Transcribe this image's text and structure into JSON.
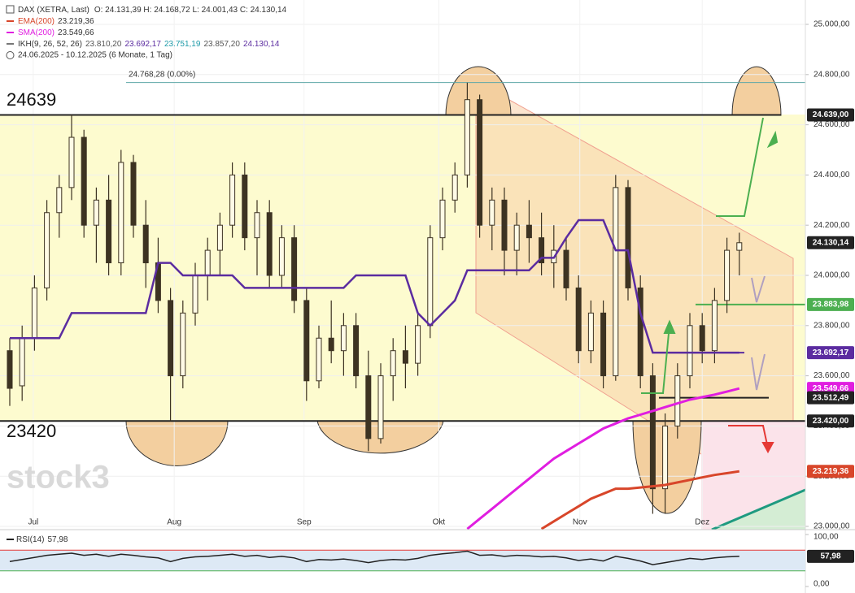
{
  "chart_data": {
    "type": "candlestick",
    "legend": {
      "instrument": "DAX (XETRA, Last)",
      "ohlc": "O: 24.131,39  H: 24.168,72  L: 24.001,43  C: 24.130,14",
      "ema_name": "EMA(200)",
      "ema_value": "23.219,36",
      "sma_name": "SMA(200)",
      "sma_value": "23.549,66",
      "ikh_name": "IKH(9, 26, 52, 26)",
      "ikh_values": [
        {
          "text": "23.810,20",
          "color": "#555555"
        },
        {
          "text": "23.692,17",
          "color": "#5b2ca0"
        },
        {
          "text": "23.751,19",
          "color": "#1e9aa8"
        },
        {
          "text": "23.857,20",
          "color": "#555555"
        },
        {
          "text": "24.130,14",
          "color": "#5b2ca0"
        }
      ],
      "range": "24.06.2025 - 10.12.2025 (6 Monate, 1 Tag)"
    },
    "watermark": "stock3",
    "annotations": [
      "24639",
      "23420"
    ],
    "peak_label": "24.768,28 (0.00%)",
    "ylim": [
      23000,
      25000
    ],
    "yticks": [
      {
        "value": 23000,
        "label": "23.000,00"
      },
      {
        "value": 23200,
        "label": "23.200,00"
      },
      {
        "value": 23400,
        "label": "23.400,00"
      },
      {
        "value": 23600,
        "label": "23.600,00"
      },
      {
        "value": 23800,
        "label": "23.800,00"
      },
      {
        "value": 24000,
        "label": "24.000,00"
      },
      {
        "value": 24200,
        "label": "24.200,00"
      },
      {
        "value": 24400,
        "label": "24.400,00"
      },
      {
        "value": 24600,
        "label": "24.600,00"
      },
      {
        "value": 24800,
        "label": "24.800,00"
      },
      {
        "value": 25000,
        "label": "25.000,00"
      }
    ],
    "xticks": [
      {
        "value": 1.9,
        "label": "Jul"
      },
      {
        "value": 13.3,
        "label": "Aug"
      },
      {
        "value": 23.8,
        "label": "Sep"
      },
      {
        "value": 34.7,
        "label": "Okt"
      },
      {
        "value": 46.1,
        "label": "Nov"
      },
      {
        "value": 56,
        "label": "Dez"
      }
    ],
    "grid": true,
    "candles": [
      {
        "open": 23700,
        "high": 23750,
        "low": 23480,
        "close": 23550
      },
      {
        "open": 23560,
        "high": 23800,
        "low": 23500,
        "close": 23750
      },
      {
        "open": 23750,
        "high": 24000,
        "low": 23700,
        "close": 23950
      },
      {
        "open": 23950,
        "high": 24300,
        "low": 23900,
        "close": 24250
      },
      {
        "open": 24250,
        "high": 24400,
        "low": 24150,
        "close": 24350
      },
      {
        "open": 24350,
        "high": 24640,
        "low": 24300,
        "close": 24550
      },
      {
        "open": 24550,
        "high": 24580,
        "low": 24150,
        "close": 24200
      },
      {
        "open": 24200,
        "high": 24350,
        "low": 24050,
        "close": 24300
      },
      {
        "open": 24300,
        "high": 24400,
        "low": 24000,
        "close": 24050
      },
      {
        "open": 24050,
        "high": 24500,
        "low": 24000,
        "close": 24450
      },
      {
        "open": 24450,
        "high": 24480,
        "low": 24150,
        "close": 24200
      },
      {
        "open": 24200,
        "high": 24300,
        "low": 23950,
        "close": 24050
      },
      {
        "open": 24050,
        "high": 24150,
        "low": 23850,
        "close": 23900
      },
      {
        "open": 23900,
        "high": 23950,
        "low": 23420,
        "close": 23600
      },
      {
        "open": 23600,
        "high": 23900,
        "low": 23550,
        "close": 23850
      },
      {
        "open": 23850,
        "high": 24050,
        "low": 23800,
        "close": 24000
      },
      {
        "open": 24000,
        "high": 24150,
        "low": 23900,
        "close": 24100
      },
      {
        "open": 24100,
        "high": 24250,
        "low": 24000,
        "close": 24200
      },
      {
        "open": 24200,
        "high": 24450,
        "low": 24150,
        "close": 24400
      },
      {
        "open": 24400,
        "high": 24450,
        "low": 24100,
        "close": 24150
      },
      {
        "open": 24150,
        "high": 24300,
        "low": 24000,
        "close": 24250
      },
      {
        "open": 24250,
        "high": 24300,
        "low": 23950,
        "close": 24000
      },
      {
        "open": 24000,
        "high": 24200,
        "low": 23950,
        "close": 24150
      },
      {
        "open": 24150,
        "high": 24200,
        "low": 23850,
        "close": 23900
      },
      {
        "open": 23900,
        "high": 23950,
        "low": 23500,
        "close": 23580
      },
      {
        "open": 23580,
        "high": 23800,
        "low": 23550,
        "close": 23750
      },
      {
        "open": 23750,
        "high": 23900,
        "low": 23650,
        "close": 23700
      },
      {
        "open": 23700,
        "high": 23850,
        "low": 23600,
        "close": 23800
      },
      {
        "open": 23800,
        "high": 23850,
        "low": 23550,
        "close": 23600
      },
      {
        "open": 23600,
        "high": 23700,
        "low": 23300,
        "close": 23350
      },
      {
        "open": 23350,
        "high": 23650,
        "low": 23330,
        "close": 23600
      },
      {
        "open": 23600,
        "high": 23750,
        "low": 23500,
        "close": 23700
      },
      {
        "open": 23700,
        "high": 23800,
        "low": 23550,
        "close": 23650
      },
      {
        "open": 23650,
        "high": 23850,
        "low": 23600,
        "close": 23800
      },
      {
        "open": 23800,
        "high": 24200,
        "low": 23750,
        "close": 24150
      },
      {
        "open": 24150,
        "high": 24350,
        "low": 24100,
        "close": 24300
      },
      {
        "open": 24300,
        "high": 24450,
        "low": 24250,
        "close": 24400
      },
      {
        "open": 24400,
        "high": 24768,
        "low": 24350,
        "close": 24700
      },
      {
        "open": 24700,
        "high": 24720,
        "low": 24150,
        "close": 24200
      },
      {
        "open": 24200,
        "high": 24350,
        "low": 24100,
        "close": 24300
      },
      {
        "open": 24300,
        "high": 24350,
        "low": 24000,
        "close": 24100
      },
      {
        "open": 24100,
        "high": 24250,
        "low": 24000,
        "close": 24200
      },
      {
        "open": 24200,
        "high": 24300,
        "low": 24050,
        "close": 24150
      },
      {
        "open": 24150,
        "high": 24250,
        "low": 24000,
        "close": 24050
      },
      {
        "open": 24050,
        "high": 24200,
        "low": 23950,
        "close": 24100
      },
      {
        "open": 24100,
        "high": 24150,
        "low": 23900,
        "close": 23950
      },
      {
        "open": 23950,
        "high": 24000,
        "low": 23650,
        "close": 23700
      },
      {
        "open": 23700,
        "high": 23900,
        "low": 23650,
        "close": 23850
      },
      {
        "open": 23850,
        "high": 23900,
        "low": 23550,
        "close": 23600
      },
      {
        "open": 23600,
        "high": 24400,
        "low": 23580,
        "close": 24350
      },
      {
        "open": 24350,
        "high": 24380,
        "low": 23900,
        "close": 23950
      },
      {
        "open": 23950,
        "high": 24000,
        "low": 23550,
        "close": 23600
      },
      {
        "open": 23600,
        "high": 23650,
        "low": 23050,
        "close": 23150
      },
      {
        "open": 23150,
        "high": 23450,
        "low": 23050,
        "close": 23400
      },
      {
        "open": 23400,
        "high": 23650,
        "low": 23350,
        "close": 23600
      },
      {
        "open": 23600,
        "high": 23850,
        "low": 23550,
        "close": 23800
      },
      {
        "open": 23800,
        "high": 23850,
        "low": 23650,
        "close": 23700
      },
      {
        "open": 23700,
        "high": 23950,
        "low": 23650,
        "close": 23900
      },
      {
        "open": 23900,
        "high": 24150,
        "low": 23850,
        "close": 24100
      },
      {
        "open": 24100,
        "high": 24170,
        "low": 24000,
        "close": 24130.14
      }
    ],
    "series": [
      {
        "name": "IKH",
        "color": "#5b2ca0",
        "values": [
          23750,
          23750,
          23750,
          23750,
          23750,
          23850,
          23850,
          23850,
          23850,
          23850,
          23850,
          23850,
          24050,
          24050,
          24000,
          24000,
          24000,
          24000,
          24000,
          23950,
          23950,
          23950,
          23950,
          23950,
          23950,
          23950,
          23950,
          23950,
          24000,
          24000,
          24000,
          24000,
          24000,
          23850,
          23800,
          23850,
          23900,
          24020,
          24020,
          24020,
          24020,
          24020,
          24020,
          24070,
          24070,
          24150,
          24220,
          24220,
          24220,
          24100,
          24100,
          23850,
          23692.17,
          23692.17,
          23692.17,
          23692.17,
          23692.17,
          23692.17,
          23692.17,
          23692.17
        ]
      },
      {
        "name": "SMA(200)",
        "color": "#e01ee0",
        "values": [
          null,
          null,
          null,
          null,
          null,
          null,
          null,
          null,
          null,
          null,
          null,
          null,
          null,
          null,
          null,
          null,
          null,
          null,
          null,
          null,
          null,
          null,
          null,
          null,
          null,
          null,
          null,
          null,
          null,
          null,
          null,
          null,
          null,
          null,
          null,
          null,
          null,
          22990,
          23030,
          23070,
          23110,
          23150,
          23190,
          23230,
          23270,
          23300,
          23330,
          23360,
          23390,
          23410,
          23430,
          23445,
          23460,
          23475,
          23490,
          23505,
          23515,
          23525,
          23537,
          23549.66
        ]
      },
      {
        "name": "EMA(200)",
        "color": "#d8462a",
        "values": [
          null,
          null,
          null,
          null,
          null,
          null,
          null,
          null,
          null,
          null,
          null,
          null,
          null,
          null,
          null,
          null,
          null,
          null,
          null,
          null,
          null,
          null,
          null,
          null,
          null,
          null,
          null,
          null,
          null,
          null,
          null,
          null,
          null,
          null,
          null,
          null,
          null,
          null,
          null,
          null,
          null,
          null,
          null,
          22990,
          23020,
          23050,
          23080,
          23110,
          23130,
          23150,
          23150,
          23155,
          23160,
          23165,
          23175,
          23185,
          23195,
          23205,
          23212,
          23219.36
        ]
      }
    ],
    "levels": [
      {
        "value": 24768.28,
        "color": "#5fa8a8"
      },
      {
        "value": 24639,
        "color": "#222222"
      },
      {
        "value": 23883.98,
        "color": "#4caf50"
      },
      {
        "value": 23692.17,
        "color": "#5b2ca0"
      },
      {
        "value": 23512.49,
        "color": "#222222"
      },
      {
        "value": 23420,
        "color": "#222222"
      }
    ],
    "price_tags": [
      {
        "value": 24639,
        "label": "24.639,00",
        "color": "#222222"
      },
      {
        "value": 24130.14,
        "label": "24.130,14",
        "color": "#222222"
      },
      {
        "value": 23883.98,
        "label": "23.883,98",
        "color": "#4caf50"
      },
      {
        "value": 23692.17,
        "label": "23.692,17",
        "color": "#5b2ca0"
      },
      {
        "value": 23549.66,
        "label": "23.549,66",
        "color": "#e01ee0"
      },
      {
        "value": 23512.49,
        "label": "23.512,49",
        "color": "#222222"
      },
      {
        "value": 23420,
        "label": "23.420,00",
        "color": "#222222"
      },
      {
        "value": 23219.36,
        "label": "23.219,36",
        "color": "#d8462a"
      }
    ],
    "rsi": {
      "name": "RSI(14)",
      "value_label": "57,98",
      "color": "#222222",
      "ylim": [
        0,
        100
      ],
      "yticks": [
        {
          "value": 100,
          "label": "100,00"
        },
        {
          "value": 0,
          "label": "0,00"
        }
      ],
      "upper": 70,
      "lower": 30,
      "values": [
        48,
        52,
        56,
        60,
        62,
        64,
        60,
        62,
        58,
        62,
        60,
        57,
        55,
        48,
        54,
        57,
        58,
        60,
        62,
        58,
        60,
        56,
        58,
        55,
        48,
        52,
        51,
        53,
        50,
        46,
        50,
        52,
        51,
        54,
        60,
        63,
        65,
        68,
        60,
        61,
        58,
        60,
        59,
        57,
        58,
        55,
        50,
        53,
        49,
        58,
        54,
        49,
        42,
        46,
        50,
        54,
        52,
        55,
        57,
        57.98
      ]
    }
  }
}
